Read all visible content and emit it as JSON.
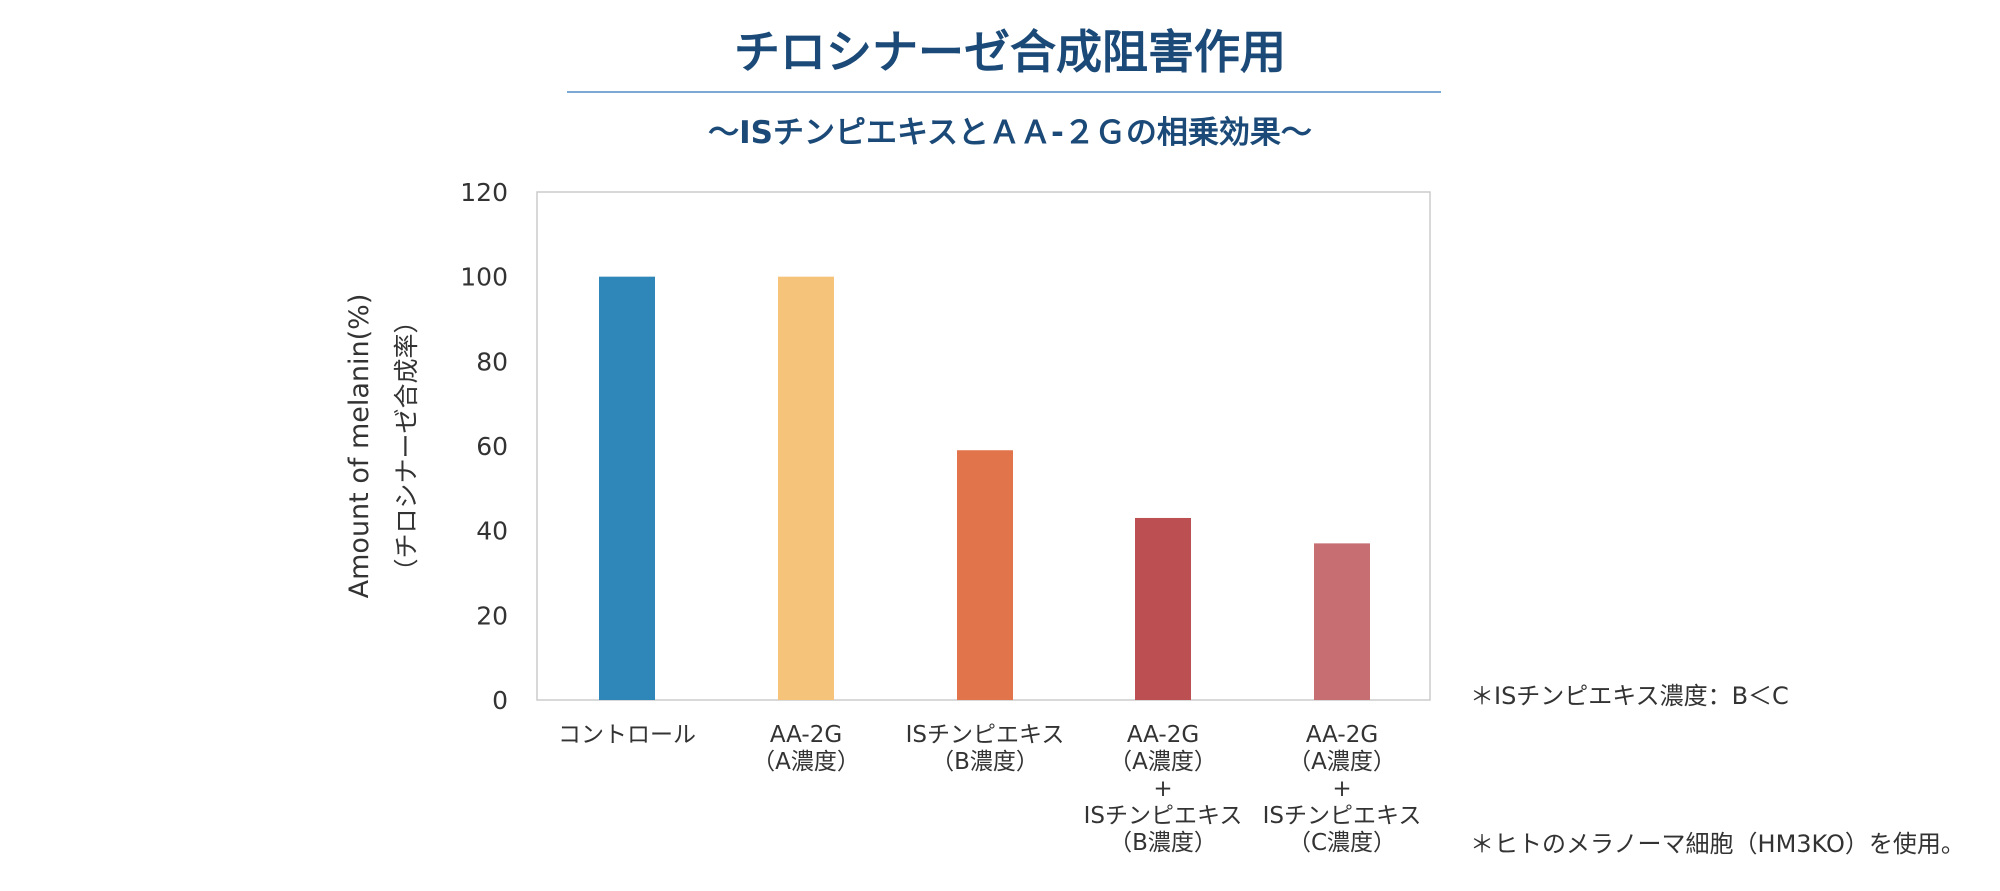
{
  "colors": {
    "title": "#1b4a78",
    "rule": "#7da7d4",
    "frame": "#cccccc",
    "text": "#333333"
  },
  "chart_data": {
    "type": "bar",
    "title": "チロシナーゼ合成阻害作用",
    "subtitle": "～ISチンピエキスとＡＡ-２Ｇの相乗効果～",
    "ylabel": "Amount of melanin(%)",
    "ylabel2": "（チロシナーゼ合成率）",
    "ylim": [
      0,
      120
    ],
    "yticks": [
      0,
      20,
      40,
      60,
      80,
      100,
      120
    ],
    "grid": false,
    "categories": [
      [
        "コントロール"
      ],
      [
        "AA-2G",
        "（A濃度）"
      ],
      [
        "ISチンピエキス",
        "（B濃度）"
      ],
      [
        "AA-2G",
        "（A濃度）",
        "+",
        "ISチンピエキス",
        "（B濃度）"
      ],
      [
        "AA-2G",
        "（A濃度）",
        "+",
        "ISチンピエキス",
        "（C濃度）"
      ]
    ],
    "values": [
      100,
      100,
      59,
      43,
      37
    ],
    "bar_colors": [
      "#2f86b8",
      "#f5c47a",
      "#e2744c",
      "#bb4f52",
      "#c76e72"
    ]
  },
  "notes": [
    "＊ISチンピエキス濃度：B＜C",
    "＊ヒトのメラノーマ細胞（HM3KO）を使用。"
  ]
}
